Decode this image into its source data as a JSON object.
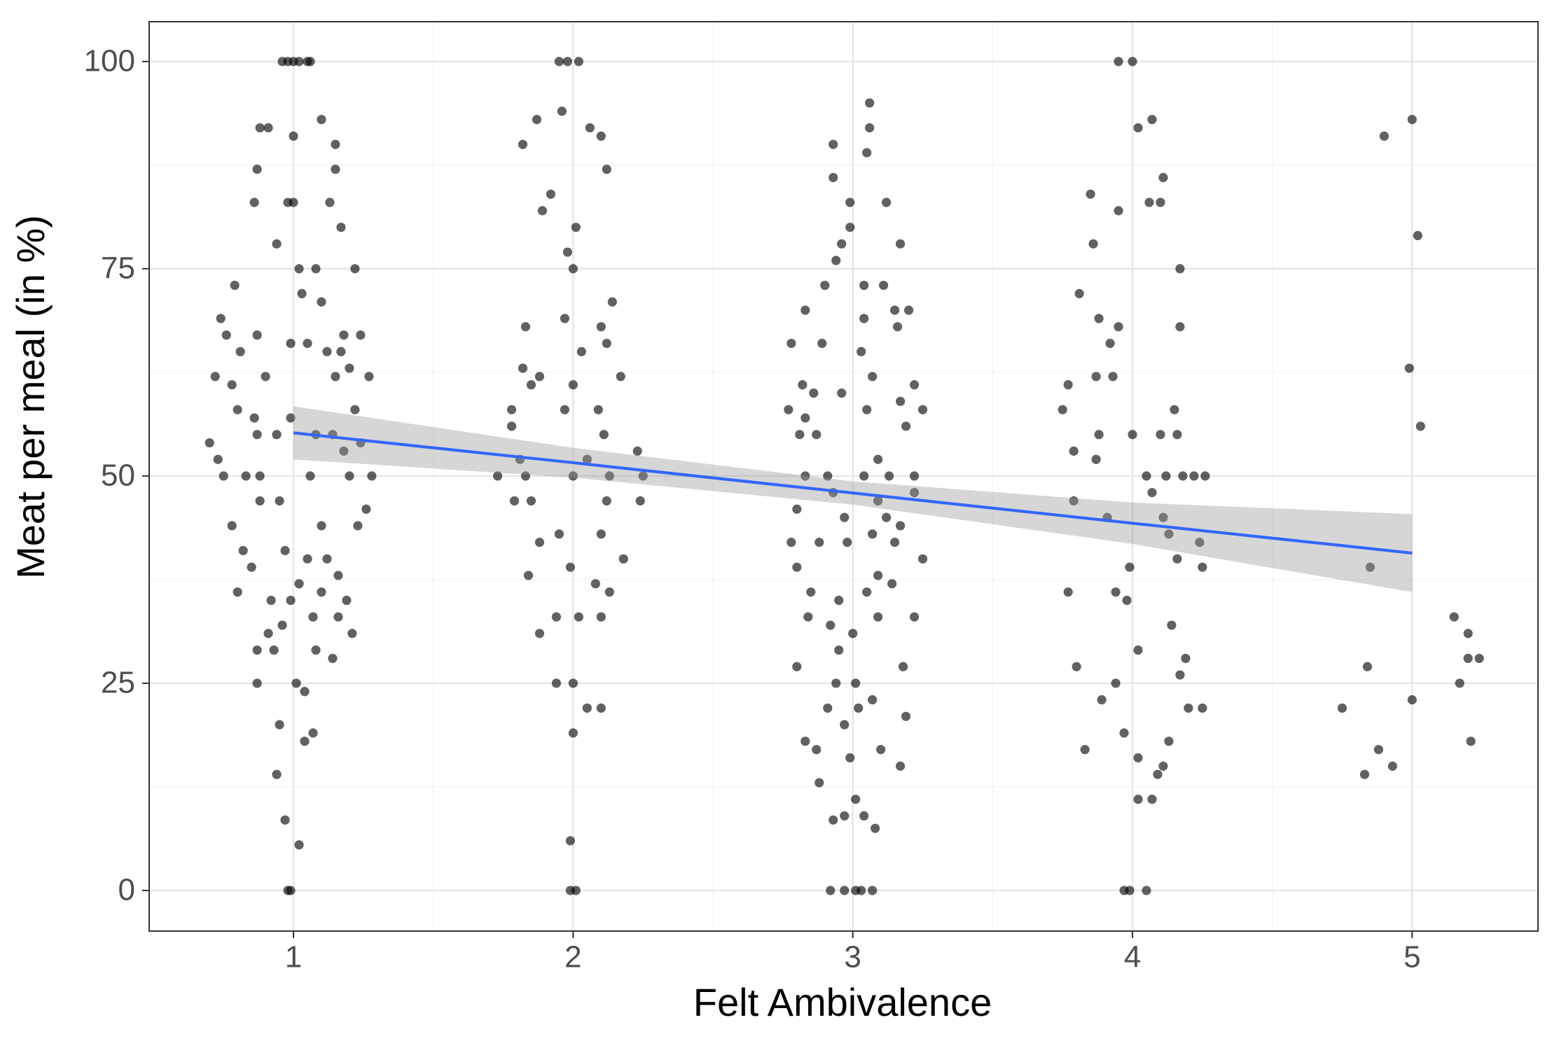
{
  "chart_data": {
    "type": "scatter",
    "xlabel": "Felt Ambivalence",
    "ylabel": "Meat per meal (in %)",
    "xlim": [
      0.484,
      5.45
    ],
    "ylim": [
      -4.9,
      104.8
    ],
    "xticks": [
      1,
      2,
      3,
      4,
      5
    ],
    "yticks": [
      0,
      25,
      50,
      75,
      100
    ],
    "x_minor_grid": [
      1.5,
      2.5,
      3.5,
      4.5
    ],
    "y_minor_grid": [
      12.5,
      37.5,
      62.5,
      87.5
    ],
    "grid": true,
    "color": "#000000",
    "point_opacity": 0.62,
    "x": [
      1.0,
      0.98,
      1.02,
      1.05,
      0.96,
      1.06,
      1.1,
      0.91,
      0.88,
      1.0,
      1.0,
      0.86,
      0.98,
      1.13,
      1.15,
      1.15,
      0.87,
      1.08,
      1.02,
      0.94,
      1.17,
      1.22,
      0.79,
      1.03,
      1.1,
      0.74,
      0.76,
      0.87,
      0.99,
      1.05,
      1.18,
      1.24,
      1.12,
      1.17,
      1.2,
      0.81,
      0.72,
      0.9,
      1.15,
      1.27,
      0.78,
      1.22,
      0.8,
      0.86,
      0.99,
      0.7,
      0.87,
      0.94,
      1.08,
      1.14,
      1.24,
      0.73,
      1.18,
      0.75,
      0.83,
      0.88,
      1.06,
      1.2,
      1.28,
      0.88,
      0.95,
      1.26,
      0.78,
      1.1,
      1.23,
      0.97,
      1.05,
      1.12,
      0.82,
      0.85,
      1.16,
      1.02,
      1.1,
      0.8,
      0.92,
      0.99,
      1.19,
      1.07,
      1.16,
      0.96,
      0.91,
      1.21,
      0.93,
      1.08,
      0.87,
      1.14,
      0.87,
      1.01,
      1.04,
      0.95,
      1.07,
      1.04,
      0.94,
      0.97,
      1.02,
      0.99,
      0.98,
      1.95,
      1.98,
      2.02,
      1.96,
      1.87,
      1.82,
      2.06,
      2.1,
      2.12,
      1.92,
      1.89,
      2.01,
      1.98,
      2.0,
      1.97,
      1.83,
      2.1,
      2.12,
      2.03,
      2.14,
      1.82,
      1.88,
      1.85,
      2.0,
      2.09,
      2.17,
      1.78,
      1.78,
      1.97,
      2.11,
      1.81,
      2.23,
      2.25,
      1.73,
      1.83,
      2.0,
      2.13,
      2.05,
      1.79,
      1.85,
      2.24,
      2.12,
      1.95,
      2.1,
      1.88,
      2.18,
      1.99,
      1.84,
      2.08,
      2.13,
      1.94,
      2.02,
      2.1,
      1.88,
      1.94,
      2.0,
      2.05,
      2.1,
      2.0,
      1.99,
      1.99,
      2.01,
      3.06,
      3.06,
      2.93,
      3.05,
      2.93,
      2.99,
      3.12,
      3.17,
      2.96,
      2.94,
      2.99,
      2.9,
      3.04,
      3.11,
      3.15,
      3.2,
      2.83,
      3.04,
      3.16,
      2.78,
      2.89,
      3.03,
      3.07,
      2.82,
      3.22,
      2.96,
      2.86,
      3.17,
      2.77,
      3.05,
      3.25,
      2.83,
      3.19,
      2.81,
      2.87,
      3.09,
      2.91,
      3.04,
      3.22,
      2.83,
      3.13,
      2.8,
      2.93,
      3.09,
      3.22,
      2.97,
      3.12,
      3.17,
      3.07,
      2.78,
      2.88,
      2.98,
      3.15,
      3.25,
      2.8,
      3.09,
      3.14,
      2.85,
      2.95,
      3.05,
      3.09,
      2.84,
      2.92,
      3.0,
      3.22,
      2.95,
      3.18,
      2.8,
      3.01,
      2.94,
      3.07,
      2.91,
      3.02,
      3.19,
      2.97,
      2.83,
      2.87,
      3.1,
      2.99,
      3.17,
      2.88,
      3.01,
      2.97,
      3.04,
      2.93,
      3.08,
      2.92,
      2.97,
      3.01,
      3.03,
      3.07,
      3.95,
      4.0,
      4.07,
      4.02,
      4.11,
      3.85,
      4.06,
      4.1,
      3.95,
      3.86,
      4.17,
      3.81,
      3.88,
      3.95,
      4.17,
      3.92,
      3.93,
      3.77,
      3.87,
      4.15,
      3.75,
      3.88,
      4.0,
      4.1,
      4.16,
      3.79,
      3.87,
      4.05,
      4.12,
      4.18,
      4.22,
      4.26,
      4.07,
      3.79,
      3.91,
      4.11,
      4.13,
      4.24,
      4.16,
      3.99,
      4.25,
      3.77,
      3.94,
      3.98,
      4.14,
      4.19,
      3.8,
      4.17,
      3.94,
      3.89,
      4.2,
      4.25,
      4.02,
      3.97,
      4.13,
      3.83,
      4.02,
      4.11,
      4.09,
      4.02,
      4.07,
      3.97,
      3.99,
      4.05,
      5.0,
      4.9,
      5.02,
      4.99,
      5.03,
      4.85,
      5.15,
      5.2,
      5.2,
      5.24,
      5.17,
      4.84,
      4.75,
      5.0,
      5.21,
      4.88,
      4.93,
      4.83
    ],
    "values": [
      100,
      100,
      100,
      100,
      100,
      100,
      93,
      92,
      92,
      91,
      83,
      83,
      83,
      83,
      87,
      90,
      87,
      75,
      75,
      78,
      80,
      75,
      73,
      72,
      71,
      69,
      67,
      67,
      66,
      66,
      67,
      67,
      65,
      65,
      63,
      65,
      62,
      62,
      62,
      62,
      61,
      58,
      58,
      57,
      57,
      54,
      55,
      55,
      55,
      55,
      54,
      52,
      53,
      50,
      50,
      50,
      50,
      50,
      50,
      47,
      47,
      46,
      44,
      44,
      44,
      41,
      40,
      40,
      41,
      39,
      38,
      37,
      36,
      36,
      35,
      35,
      35,
      33,
      33,
      32,
      31,
      31,
      29,
      29,
      29,
      28,
      25,
      25,
      24,
      20,
      19,
      18,
      14,
      8.5,
      5.5,
      0,
      0,
      100,
      100,
      100,
      94,
      93,
      90,
      92,
      91,
      87,
      84,
      82,
      80,
      77,
      75,
      69,
      68,
      68,
      66,
      65,
      71,
      63,
      62,
      61,
      61,
      58,
      62,
      58,
      56,
      58,
      55,
      52,
      53,
      50,
      50,
      50,
      50,
      50,
      52,
      47,
      47,
      47,
      47,
      43,
      43,
      42,
      40,
      39,
      38,
      37,
      36,
      33,
      33,
      33,
      31,
      25,
      25,
      22,
      22,
      19,
      6,
      0,
      0,
      95,
      92,
      90,
      89,
      86,
      83,
      83,
      78,
      78,
      76,
      80,
      73,
      73,
      73,
      70,
      70,
      70,
      69,
      68,
      66,
      66,
      65,
      62,
      61,
      61,
      60,
      60,
      59,
      58,
      58,
      58,
      57,
      56,
      55,
      55,
      52,
      50,
      50,
      50,
      50,
      50,
      46,
      48,
      47,
      48,
      45,
      45,
      44,
      43,
      42,
      42,
      42,
      42,
      40,
      39,
      38,
      37,
      36,
      35,
      36,
      33,
      33,
      32,
      31,
      33,
      29,
      27,
      27,
      25,
      25,
      23,
      22,
      22,
      21,
      20,
      18,
      17,
      17,
      16,
      15,
      13,
      11,
      9,
      9,
      8.5,
      7.5,
      0,
      0,
      0,
      0,
      0,
      100,
      100,
      93,
      92,
      86,
      84,
      83,
      83,
      82,
      78,
      75,
      72,
      69,
      68,
      68,
      66,
      62,
      61,
      62,
      58,
      58,
      55,
      55,
      55,
      55,
      53,
      52,
      50,
      50,
      50,
      50,
      50,
      48,
      47,
      45,
      45,
      43,
      42,
      40,
      39,
      39,
      36,
      36,
      35,
      32,
      28,
      27,
      26,
      25,
      23,
      22,
      22,
      29,
      19,
      18,
      17,
      16,
      15,
      14,
      11,
      11,
      0,
      0,
      0,
      93,
      91,
      79,
      63,
      56,
      39,
      33,
      31,
      28,
      28,
      25,
      27,
      22,
      23,
      18,
      17,
      15,
      14
    ],
    "fit": {
      "x": [
        1,
        2,
        3,
        4,
        5
      ],
      "values": [
        55.2,
        51.6,
        47.95,
        44.3,
        40.7
      ],
      "lower": [
        52.0,
        49.8,
        46.55,
        41.8,
        36.0
      ],
      "upper": [
        58.4,
        53.4,
        49.35,
        46.8,
        45.4
      ],
      "color": "#3366ff",
      "band_color": "#999999"
    }
  }
}
